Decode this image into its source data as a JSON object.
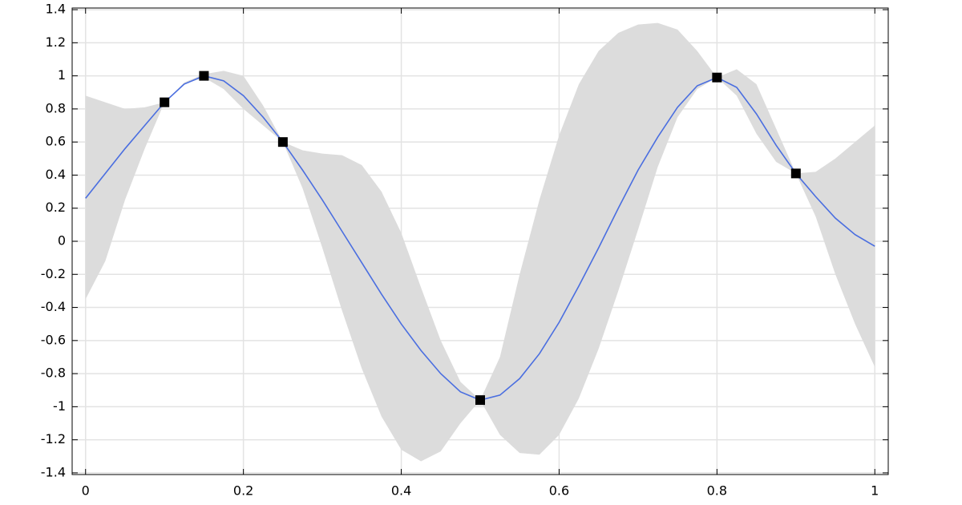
{
  "chart_data": {
    "type": "line",
    "x": [
      0,
      0.025,
      0.05,
      0.075,
      0.1,
      0.125,
      0.15,
      0.175,
      0.2,
      0.225,
      0.25,
      0.275,
      0.3,
      0.325,
      0.35,
      0.375,
      0.4,
      0.425,
      0.45,
      0.475,
      0.5,
      0.525,
      0.55,
      0.575,
      0.6,
      0.625,
      0.65,
      0.675,
      0.7,
      0.725,
      0.75,
      0.775,
      0.8,
      0.825,
      0.85,
      0.875,
      0.9,
      0.925,
      0.95,
      0.975,
      1
    ],
    "values": [
      0.26,
      0.41,
      0.56,
      0.7,
      0.84,
      0.95,
      1.0,
      0.97,
      0.88,
      0.75,
      0.6,
      0.43,
      0.25,
      0.06,
      -0.13,
      -0.32,
      -0.5,
      -0.66,
      -0.8,
      -0.91,
      -0.96,
      -0.93,
      -0.83,
      -0.68,
      -0.49,
      -0.27,
      -0.04,
      0.2,
      0.43,
      0.63,
      0.81,
      0.94,
      0.99,
      0.93,
      0.77,
      0.58,
      0.41,
      0.27,
      0.14,
      0.04,
      -0.03
    ],
    "color": "#4a6ee0",
    "band": {
      "color": "#dcdcdc",
      "upper": [
        0.88,
        0.84,
        0.8,
        0.81,
        0.84,
        0.96,
        1.01,
        1.03,
        1.0,
        0.82,
        0.6,
        0.55,
        0.53,
        0.52,
        0.46,
        0.3,
        0.05,
        -0.28,
        -0.6,
        -0.85,
        -0.96,
        -0.7,
        -0.2,
        0.25,
        0.64,
        0.95,
        1.15,
        1.26,
        1.31,
        1.32,
        1.28,
        1.15,
        0.99,
        1.04,
        0.95,
        0.68,
        0.41,
        0.42,
        0.5,
        0.6,
        0.7
      ],
      "lower": [
        -0.35,
        -0.12,
        0.25,
        0.56,
        0.84,
        0.95,
        0.99,
        0.92,
        0.8,
        0.7,
        0.6,
        0.32,
        -0.04,
        -0.42,
        -0.77,
        -1.06,
        -1.26,
        -1.33,
        -1.27,
        -1.1,
        -0.96,
        -1.17,
        -1.28,
        -1.29,
        -1.17,
        -0.95,
        -0.65,
        -0.3,
        0.07,
        0.45,
        0.75,
        0.92,
        0.99,
        0.88,
        0.65,
        0.48,
        0.41,
        0.15,
        -0.2,
        -0.5,
        -0.76
      ]
    },
    "points": {
      "color": "#000000",
      "x": [
        0.1,
        0.15,
        0.25,
        0.5,
        0.8,
        0.9
      ],
      "values": [
        0.84,
        1.0,
        0.6,
        -0.96,
        0.99,
        0.41
      ]
    },
    "xlim": [
      -0.017,
      1.017
    ],
    "ylim": [
      -1.41,
      1.41
    ],
    "xticks": [
      0,
      0.2,
      0.4,
      0.6,
      0.8,
      1
    ],
    "yticks": [
      -1.4,
      -1.2,
      -1,
      -0.8,
      -0.6,
      -0.4,
      -0.2,
      0,
      0.2,
      0.4,
      0.6,
      0.8,
      1,
      1.2,
      1.4
    ],
    "grid": true
  }
}
